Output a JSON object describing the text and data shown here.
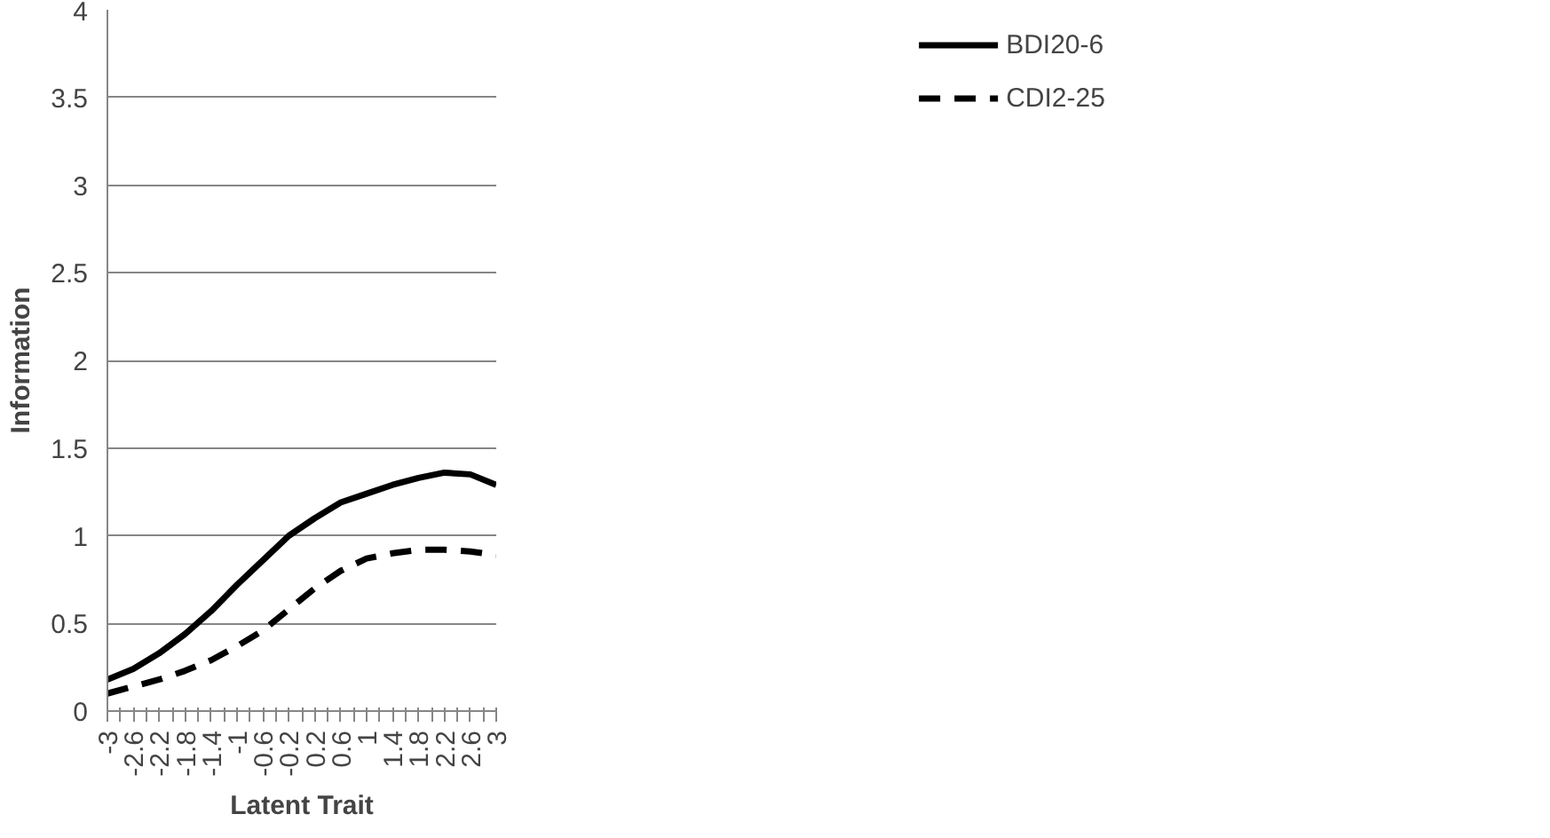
{
  "chart_data": {
    "type": "line",
    "xlabel": "Latent Trait",
    "ylabel": "Information",
    "x": [
      -3,
      -2.6,
      -2.2,
      -1.8,
      -1.4,
      -1,
      -0.6,
      -0.2,
      0.2,
      0.6,
      1,
      1.4,
      1.8,
      2.2,
      2.6,
      3
    ],
    "series": [
      {
        "name": "BDI20-6",
        "color": "#000000",
        "line_style": "solid",
        "values": [
          0.18,
          0.24,
          0.33,
          0.44,
          0.57,
          0.72,
          0.86,
          1.0,
          1.1,
          1.19,
          1.24,
          1.29,
          1.33,
          1.36,
          1.35,
          1.29
        ]
      },
      {
        "name": "CDI2-25",
        "color": "#000000",
        "line_style": "dashed",
        "values": [
          0.1,
          0.14,
          0.18,
          0.23,
          0.29,
          0.37,
          0.46,
          0.58,
          0.7,
          0.8,
          0.87,
          0.9,
          0.92,
          0.92,
          0.91,
          0.89
        ]
      }
    ],
    "xlim": [
      -3,
      3
    ],
    "xticks": [
      -3,
      {
        "value": -2.8,
        "label": null
      },
      -2.6,
      {
        "value": -2.4,
        "label": null
      },
      -2.2,
      {
        "value": -2,
        "label": null
      },
      -1.8,
      {
        "value": -1.6,
        "label": null
      },
      -1.4,
      {
        "value": -1.2,
        "label": null
      },
      -1,
      {
        "value": -0.8,
        "label": null
      },
      -0.6,
      {
        "value": -0.4,
        "label": null
      },
      -0.2,
      {
        "value": 0,
        "label": null
      },
      0.2,
      {
        "value": 0.4,
        "label": null
      },
      0.6,
      {
        "value": 0.8,
        "label": null
      },
      1,
      {
        "value": 1.2,
        "label": null
      },
      1.4,
      {
        "value": 1.6,
        "label": null
      },
      1.8,
      {
        "value": 2,
        "label": null
      },
      2.2,
      {
        "value": 2.4,
        "label": null
      },
      2.6,
      {
        "value": 2.8,
        "label": null
      },
      3
    ],
    "ylim": [
      0,
      4
    ],
    "yticks": [
      0,
      0.5,
      1,
      1.5,
      2,
      2.5,
      3,
      3.5,
      4
    ],
    "grid": "y",
    "legend": "right",
    "marker": "none"
  }
}
